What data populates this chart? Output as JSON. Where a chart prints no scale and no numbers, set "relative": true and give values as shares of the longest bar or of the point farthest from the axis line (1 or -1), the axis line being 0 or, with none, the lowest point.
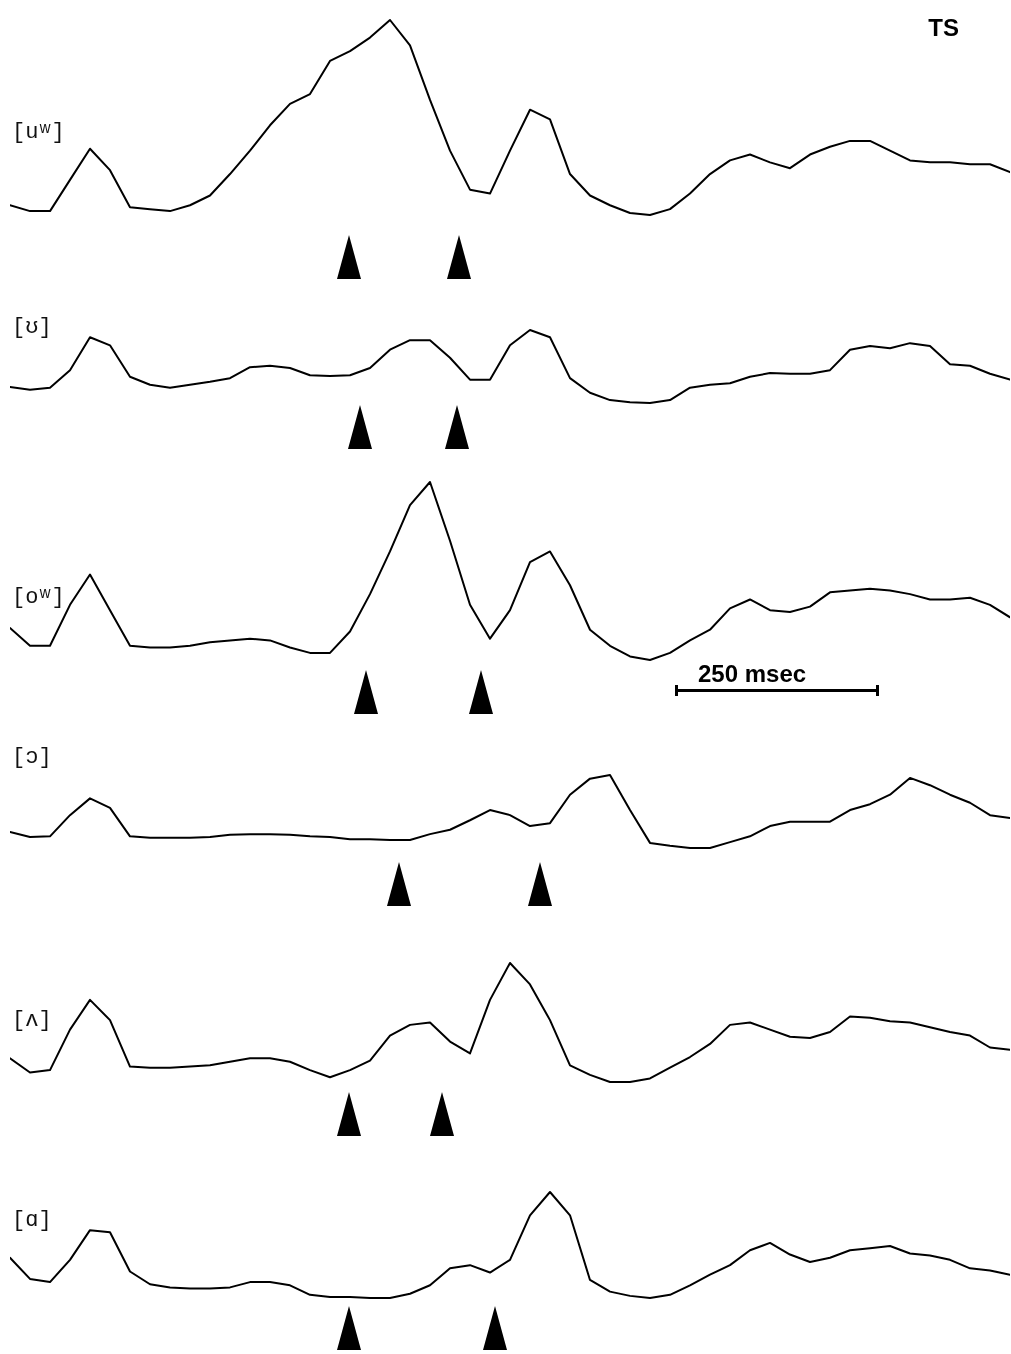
{
  "chart_data": [
    {
      "type": "line",
      "title": "TS",
      "ylabel": "[uʷ]",
      "relative": true,
      "categories": [
        null,
        null,
        null,
        null,
        null,
        null,
        null,
        null,
        null,
        null,
        null,
        null,
        null,
        null,
        null,
        null,
        null,
        null,
        null,
        null,
        null,
        null,
        null,
        null,
        null,
        null,
        null,
        null,
        null,
        null,
        null,
        null,
        null,
        null,
        null,
        null,
        null,
        null,
        null,
        null,
        null,
        null,
        null,
        null,
        null,
        null,
        null,
        null,
        null,
        null,
        null
      ],
      "series": [
        {
          "color": "#000000",
          "values": [
            0.05,
            0.02,
            0.02,
            0.18,
            0.34,
            0.23,
            0.04,
            0.03,
            0.02,
            0.05,
            0.1,
            0.21,
            0.33,
            0.46,
            0.57,
            0.62,
            0.79,
            0.84,
            0.91,
            1.0,
            0.87,
            0.59,
            0.33,
            0.13,
            0.11,
            0.33,
            0.54,
            0.49,
            0.21,
            0.1,
            0.05,
            0.01,
            0,
            0.03,
            0.11,
            0.21,
            0.28,
            0.31,
            0.27,
            0.24,
            0.31,
            0.35,
            0.38,
            0.38,
            0.33,
            0.28,
            0.27,
            0.27,
            0.26,
            0.26,
            0.22
          ]
        }
      ]
    },
    {
      "type": "line",
      "ylabel": "[ʊ]",
      "relative": true,
      "categories": [
        null,
        null,
        null,
        null,
        null,
        null,
        null,
        null,
        null,
        null,
        null,
        null,
        null,
        null,
        null,
        null,
        null,
        null,
        null,
        null,
        null,
        null,
        null,
        null,
        null,
        null,
        null,
        null,
        null,
        null,
        null,
        null,
        null,
        null,
        null,
        null,
        null,
        null,
        null,
        null,
        null,
        null,
        null,
        null,
        null,
        null,
        null,
        null,
        null,
        null,
        null
      ],
      "series": [
        {
          "color": "#000000",
          "values": [
            0.22,
            0.18,
            0.21,
            0.45,
            0.9,
            0.79,
            0.36,
            0.25,
            0.21,
            0.25,
            0.29,
            0.34,
            0.49,
            0.51,
            0.48,
            0.38,
            0.37,
            0.38,
            0.48,
            0.73,
            0.86,
            0.86,
            0.62,
            0.32,
            0.32,
            0.79,
            1.0,
            0.9,
            0.34,
            0.14,
            0.04,
            0.01,
            0,
            0.04,
            0.21,
            0.25,
            0.27,
            0.36,
            0.41,
            0.4,
            0.4,
            0.45,
            0.73,
            0.78,
            0.75,
            0.82,
            0.78,
            0.53,
            0.51,
            0.4,
            0.32
          ]
        }
      ]
    },
    {
      "type": "line",
      "ylabel": "[oʷ]",
      "relative": true,
      "annotations": [
        "250 msec"
      ],
      "categories": [
        null,
        null,
        null,
        null,
        null,
        null,
        null,
        null,
        null,
        null,
        null,
        null,
        null,
        null,
        null,
        null,
        null,
        null,
        null,
        null,
        null,
        null,
        null,
        null,
        null,
        null,
        null,
        null,
        null,
        null,
        null,
        null,
        null,
        null,
        null,
        null,
        null,
        null,
        null,
        null,
        null,
        null,
        null,
        null,
        null,
        null,
        null,
        null,
        null,
        null,
        null
      ],
      "series": [
        {
          "color": "#000000",
          "values": [
            0.18,
            0.08,
            0.08,
            0.31,
            0.48,
            0.28,
            0.08,
            0.07,
            0.07,
            0.08,
            0.1,
            0.11,
            0.12,
            0.11,
            0.07,
            0.04,
            0.04,
            0.16,
            0.37,
            0.61,
            0.87,
            1.0,
            0.67,
            0.31,
            0.12,
            0.28,
            0.55,
            0.61,
            0.42,
            0.17,
            0.08,
            0.02,
            0,
            0.04,
            0.11,
            0.17,
            0.29,
            0.34,
            0.28,
            0.27,
            0.3,
            0.38,
            0.39,
            0.4,
            0.39,
            0.37,
            0.34,
            0.34,
            0.35,
            0.31,
            0.24
          ]
        }
      ]
    },
    {
      "type": "line",
      "ylabel": "[ɔ]",
      "relative": true,
      "categories": [
        null,
        null,
        null,
        null,
        null,
        null,
        null,
        null,
        null,
        null,
        null,
        null,
        null,
        null,
        null,
        null,
        null,
        null,
        null,
        null,
        null,
        null,
        null,
        null,
        null,
        null,
        null,
        null,
        null,
        null,
        null,
        null,
        null,
        null,
        null,
        null,
        null,
        null,
        null,
        null,
        null,
        null,
        null,
        null,
        null,
        null,
        null,
        null,
        null,
        null,
        null
      ],
      "series": [
        {
          "color": "#000000",
          "values": [
            0.22,
            0.15,
            0.16,
            0.45,
            0.68,
            0.55,
            0.16,
            0.14,
            0.14,
            0.14,
            0.15,
            0.18,
            0.19,
            0.19,
            0.18,
            0.16,
            0.15,
            0.12,
            0.12,
            0.11,
            0.11,
            0.19,
            0.25,
            0.38,
            0.52,
            0.45,
            0.3,
            0.34,
            0.73,
            0.95,
            1.0,
            0.52,
            0.07,
            0.03,
            0,
            0,
            0.08,
            0.16,
            0.3,
            0.36,
            0.36,
            0.36,
            0.52,
            0.6,
            0.73,
            0.96,
            0.86,
            0.73,
            0.62,
            0.45,
            0.41
          ]
        }
      ]
    },
    {
      "type": "line",
      "ylabel": "[ʌ]",
      "relative": true,
      "categories": [
        null,
        null,
        null,
        null,
        null,
        null,
        null,
        null,
        null,
        null,
        null,
        null,
        null,
        null,
        null,
        null,
        null,
        null,
        null,
        null,
        null,
        null,
        null,
        null,
        null,
        null,
        null,
        null,
        null,
        null,
        null,
        null,
        null,
        null,
        null,
        null,
        null,
        null,
        null,
        null,
        null,
        null,
        null,
        null,
        null,
        null,
        null,
        null,
        null,
        null,
        null
      ],
      "series": [
        {
          "color": "#000000",
          "values": [
            0.2,
            0.08,
            0.1,
            0.44,
            0.69,
            0.52,
            0.13,
            0.12,
            0.12,
            0.13,
            0.14,
            0.17,
            0.2,
            0.2,
            0.17,
            0.1,
            0.04,
            0.1,
            0.18,
            0.39,
            0.48,
            0.5,
            0.34,
            0.24,
            0.69,
            1.0,
            0.82,
            0.52,
            0.14,
            0.06,
            0,
            0,
            0.03,
            0.12,
            0.21,
            0.32,
            0.48,
            0.5,
            0.44,
            0.38,
            0.37,
            0.42,
            0.55,
            0.54,
            0.51,
            0.5,
            0.46,
            0.42,
            0.39,
            0.29,
            0.27
          ]
        }
      ]
    },
    {
      "type": "line",
      "ylabel": "[ɑ]",
      "relative": true,
      "categories": [
        null,
        null,
        null,
        null,
        null,
        null,
        null,
        null,
        null,
        null,
        null,
        null,
        null,
        null,
        null,
        null,
        null,
        null,
        null,
        null,
        null,
        null,
        null,
        null,
        null,
        null,
        null,
        null,
        null,
        null,
        null,
        null,
        null,
        null,
        null,
        null,
        null,
        null,
        null,
        null,
        null,
        null,
        null,
        null,
        null,
        null,
        null,
        null,
        null,
        null,
        null
      ],
      "series": [
        {
          "color": "#000000",
          "values": [
            0.38,
            0.18,
            0.15,
            0.36,
            0.64,
            0.62,
            0.25,
            0.13,
            0.1,
            0.09,
            0.09,
            0.1,
            0.15,
            0.15,
            0.12,
            0.03,
            0.01,
            0.01,
            0,
            0,
            0.04,
            0.12,
            0.28,
            0.31,
            0.24,
            0.36,
            0.78,
            1.0,
            0.78,
            0.17,
            0.06,
            0.02,
            0,
            0.03,
            0.12,
            0.22,
            0.31,
            0.45,
            0.52,
            0.41,
            0.34,
            0.38,
            0.45,
            0.47,
            0.49,
            0.42,
            0.4,
            0.36,
            0.28,
            0.26,
            0.22
          ]
        }
      ]
    }
  ]
}
